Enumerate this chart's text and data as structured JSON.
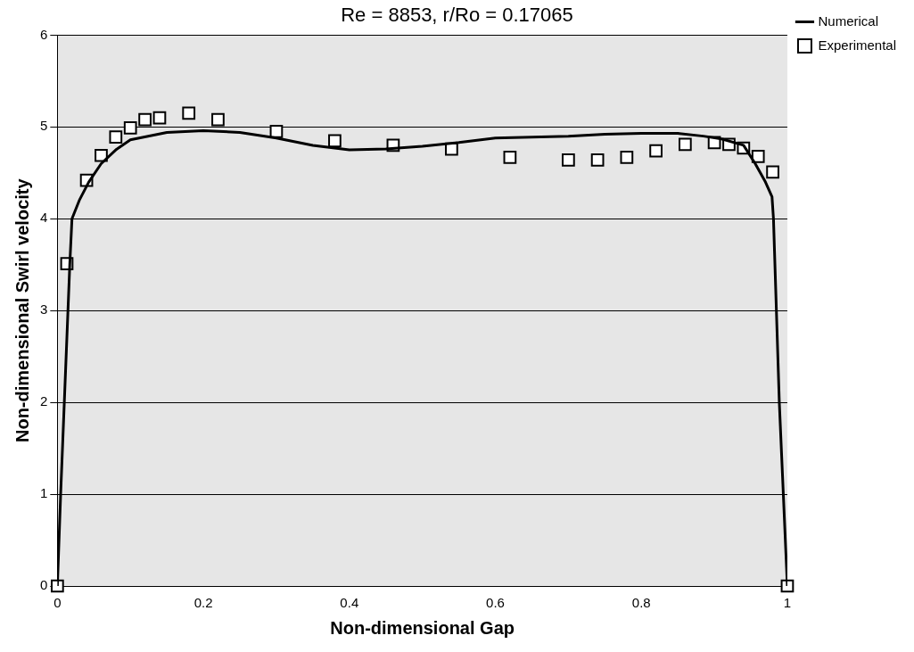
{
  "chart_data": {
    "type": "line",
    "title": "Re = 8853, r/Ro = 0.17065",
    "xlabel": "Non-dimensional Gap",
    "ylabel": "Non-dimensional Swirl velocity",
    "xlim": [
      0,
      1
    ],
    "ylim": [
      0,
      6
    ],
    "xticks": [
      0,
      0.2,
      0.4,
      0.6,
      0.8,
      1
    ],
    "yticks": [
      0,
      1,
      2,
      3,
      4,
      5,
      6
    ],
    "grid": "y",
    "legend": "top right",
    "series": [
      {
        "name": "Numerical",
        "color": "#000000",
        "marker": "none",
        "x": [
          0,
          0.0045,
          0.017,
          0.02,
          0.03,
          0.043,
          0.06,
          0.08,
          0.1,
          0.15,
          0.2,
          0.25,
          0.3,
          0.35,
          0.4,
          0.45,
          0.5,
          0.55,
          0.6,
          0.65,
          0.7,
          0.75,
          0.8,
          0.85,
          0.885,
          0.91,
          0.94,
          0.956,
          0.97,
          0.979,
          0.981,
          0.989,
          1
        ],
        "values": [
          0,
          1,
          3.5,
          4,
          4.2,
          4.4,
          4.6,
          4.75,
          4.86,
          4.94,
          4.96,
          4.94,
          4.88,
          4.8,
          4.75,
          4.76,
          4.79,
          4.83,
          4.88,
          4.89,
          4.9,
          4.92,
          4.93,
          4.93,
          4.9,
          4.87,
          4.8,
          4.6,
          4.4,
          4.24,
          4,
          2,
          0
        ]
      },
      {
        "name": "Experimental",
        "type": "scatter",
        "color": "#000000",
        "marker": "square",
        "x": [
          0,
          0.013,
          0.04,
          0.06,
          0.08,
          0.1,
          0.12,
          0.14,
          0.18,
          0.22,
          0.3,
          0.38,
          0.46,
          0.54,
          0.62,
          0.7,
          0.74,
          0.78,
          0.82,
          0.86,
          0.9,
          0.92,
          0.94,
          0.96,
          0.98,
          1
        ],
        "values": [
          0,
          3.51,
          4.42,
          4.69,
          4.89,
          4.99,
          5.08,
          5.1,
          5.15,
          5.08,
          4.95,
          4.85,
          4.8,
          4.76,
          4.67,
          4.64,
          4.64,
          4.67,
          4.74,
          4.81,
          4.83,
          4.81,
          4.77,
          4.68,
          4.51,
          0
        ]
      }
    ]
  }
}
